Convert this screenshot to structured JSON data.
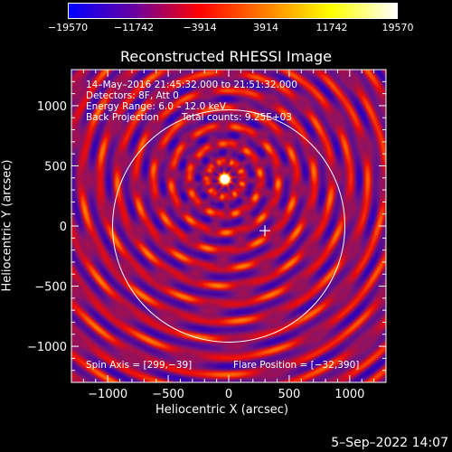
{
  "colorbar": {
    "ticks": [
      "-19570",
      "-11742",
      "-3914",
      "3914",
      "11742",
      "19570"
    ],
    "tick_values": [
      -19570,
      -11742,
      -3914,
      3914,
      11742,
      19570
    ],
    "colors": [
      "#0000ff",
      "#6a00a0",
      "#ff0000",
      "#ff8000",
      "#ffff00",
      "#ffffff"
    ]
  },
  "chart_data": {
    "type": "heatmap",
    "title": "Reconstructed RHESSI Image",
    "xlabel": "Heliocentric X (arcsec)",
    "ylabel": "Heliocentric Y (arcsec)",
    "xlim": [
      -1300,
      1300
    ],
    "ylim": [
      -1300,
      1300
    ],
    "x_ticks": [
      -1000,
      -500,
      0,
      500,
      1000
    ],
    "y_ticks": [
      -1000,
      -500,
      0,
      500,
      1000
    ],
    "x_tick_labels": [
      "−1000",
      "−500",
      "0",
      "500",
      "1000"
    ],
    "y_tick_labels": [
      "−1000",
      "−500",
      "0",
      "500",
      "1000"
    ],
    "solar_limb_radius_arcsec": 960,
    "flare_position": [
      -32,
      390
    ],
    "spin_axis": [
      299,
      -39
    ],
    "value_range": [
      -19570,
      19570
    ]
  },
  "info": {
    "line1": "14–May–2016 21:45:32.000 to 21:51:32.000",
    "line2": "Detectors: 8F, Att 0",
    "line3": "Energy Range: 6.0 – 12.0 keV",
    "line4_left": "Back Projection",
    "line4_right": "Total counts: 9.25E+03",
    "spin_axis": "Spin Axis = [299,−39]",
    "flare_position": "Flare Position = [−32,390]"
  },
  "timestamp": "5–Sep–2022 14:07"
}
